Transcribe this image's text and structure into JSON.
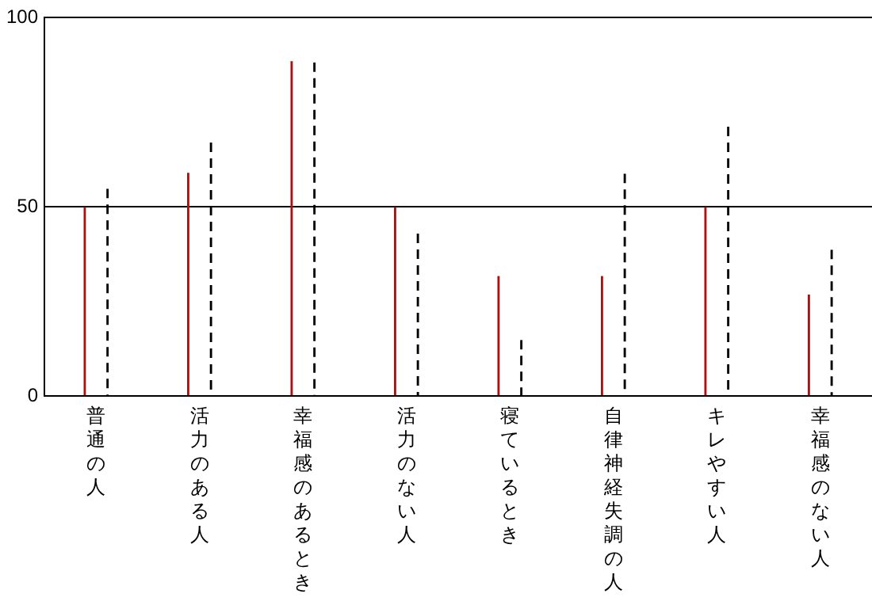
{
  "chart_data": {
    "type": "bar",
    "categories": [
      "普通の人",
      "活力のある人",
      "幸福感のあるとき",
      "活力のない人",
      "寝ているとき",
      "自律神経失調の人",
      "キレやすい人",
      "幸福感のない人"
    ],
    "series": [
      {
        "color": "#aa1111",
        "values": [
          50,
          59,
          88.5,
          50,
          31.7,
          31.7,
          50,
          26.8
        ]
      },
      {
        "color": "#000000",
        "line_style": "dashed",
        "values": [
          54.8,
          67,
          88.2,
          42.9,
          14.8,
          58.8,
          71.2,
          38.7
        ]
      }
    ],
    "ylim": [
      0,
      100
    ],
    "yticks": [
      0,
      50,
      100
    ],
    "grid": "y",
    "legend": false
  }
}
